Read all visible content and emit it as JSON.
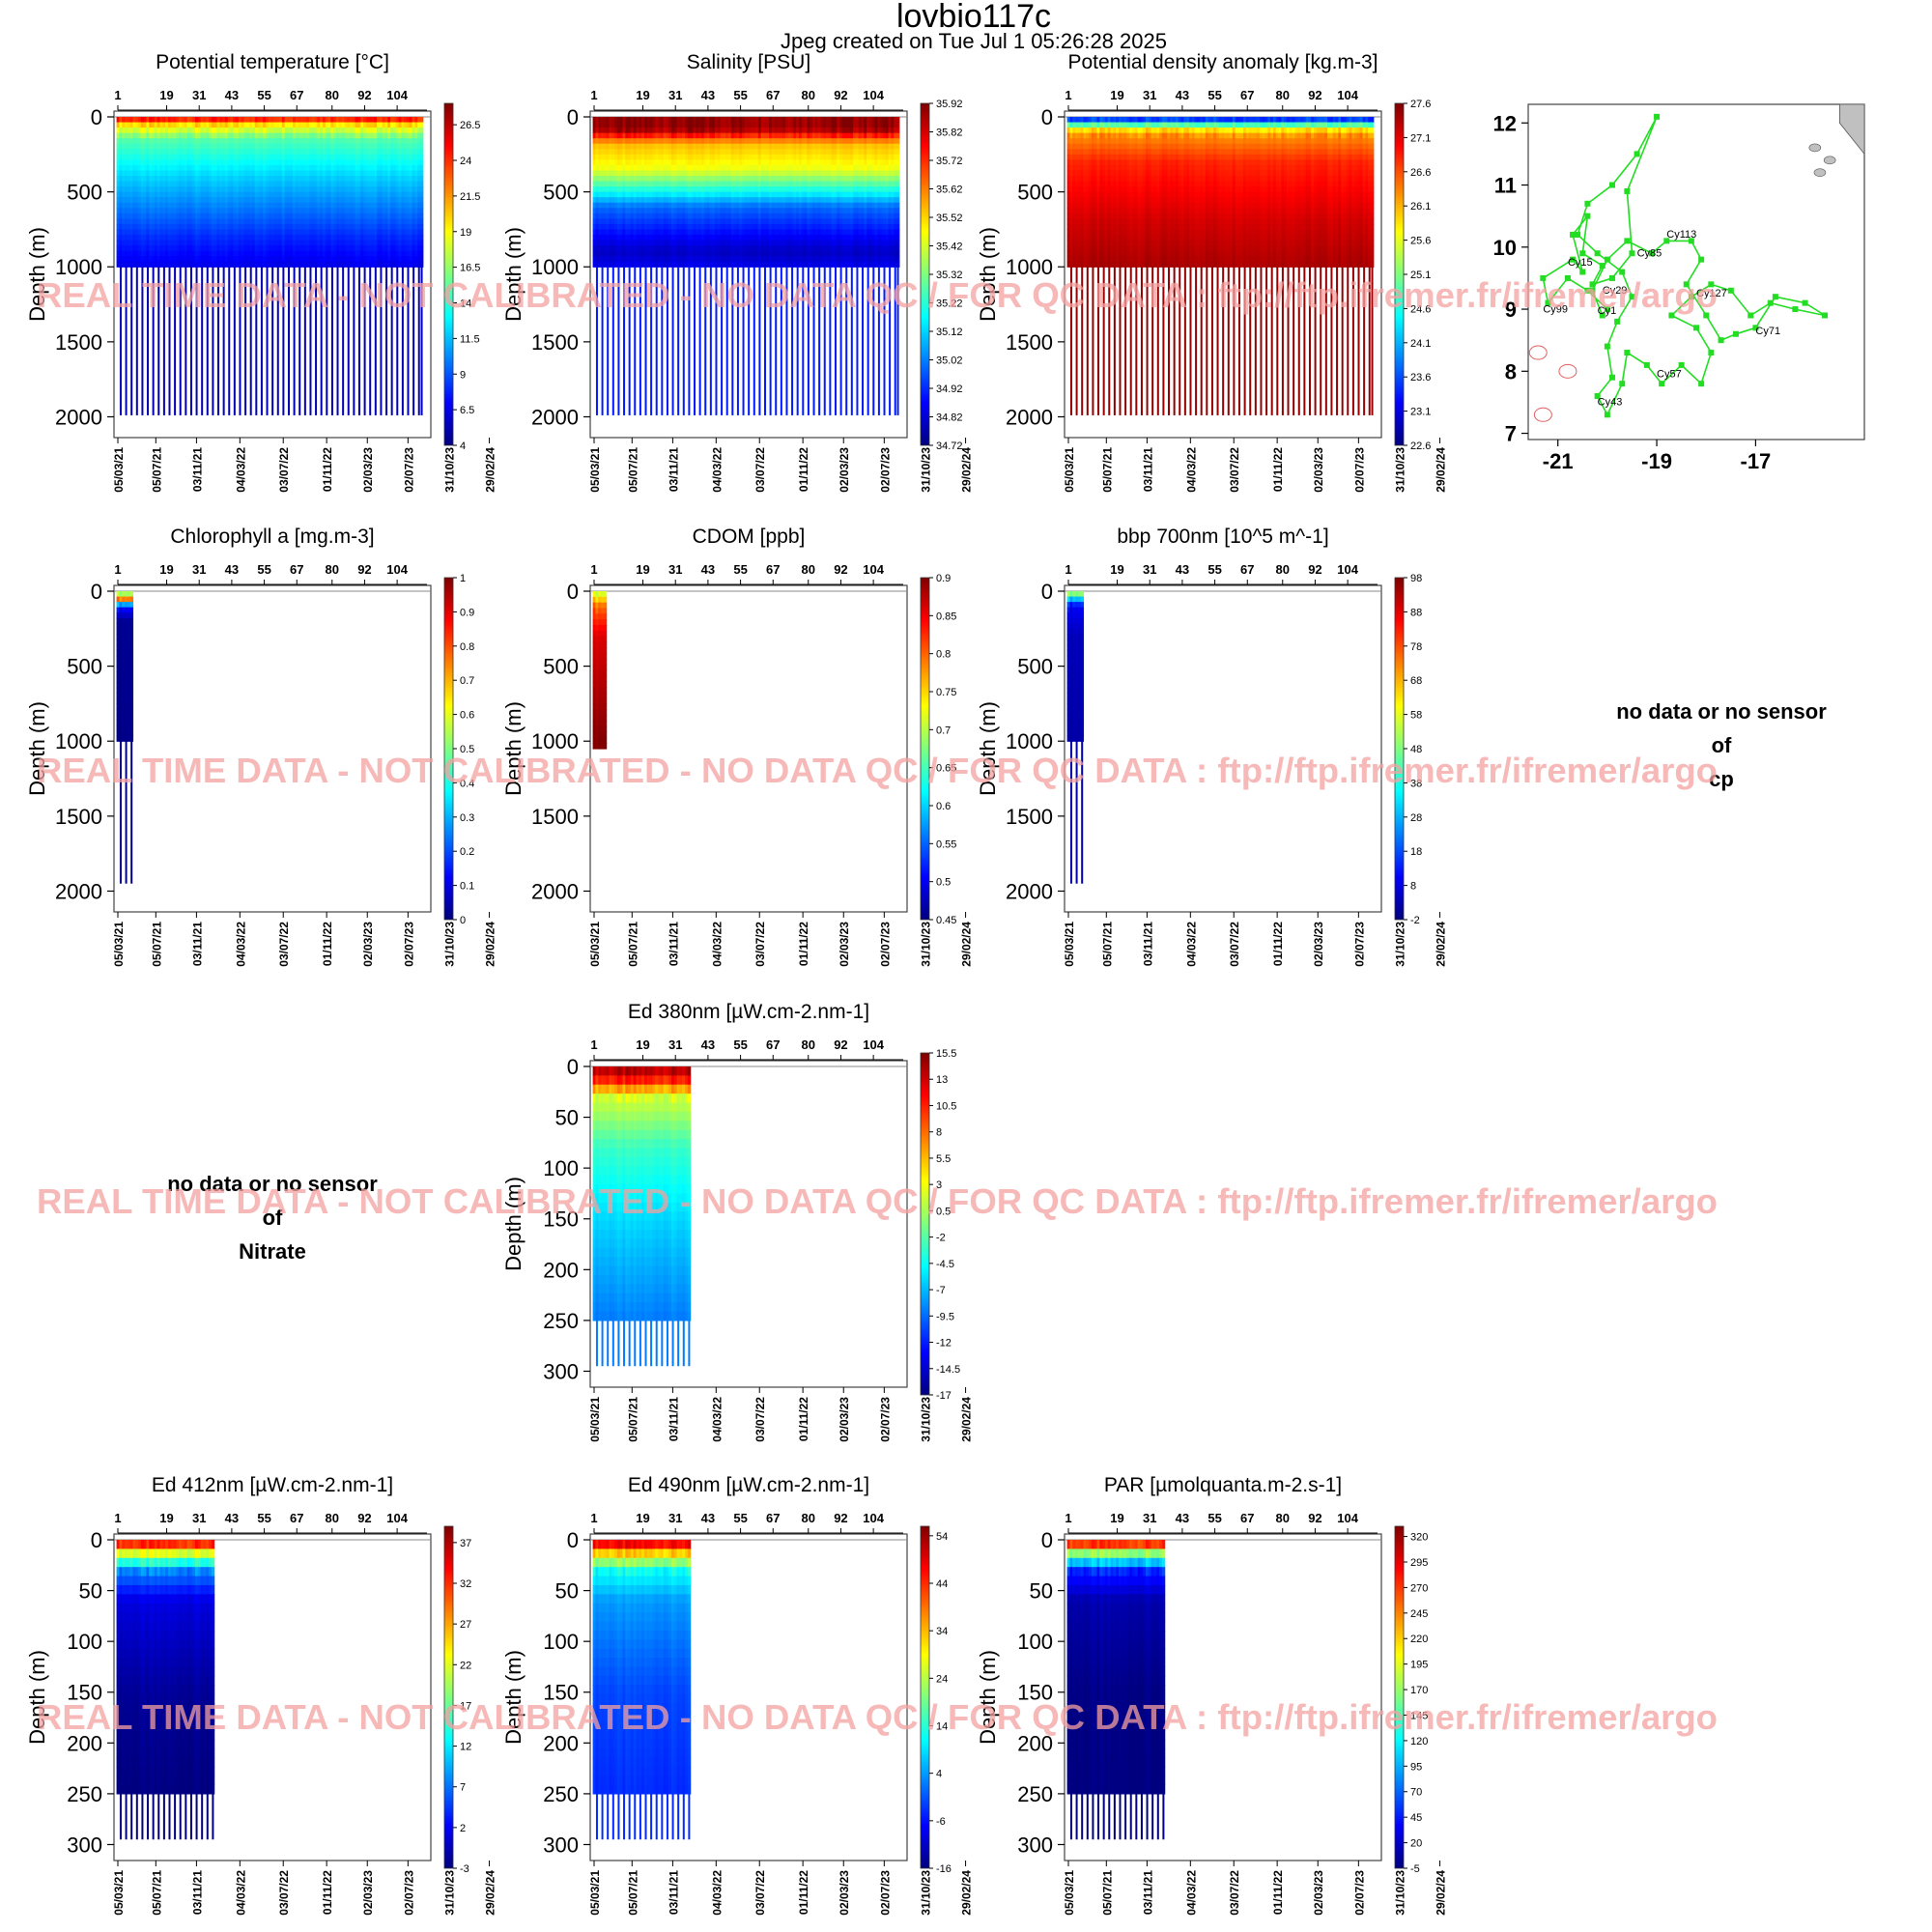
{
  "page": {
    "title": "lovbio117c",
    "subtitle": "Jpeg created on  Tue Jul  1 05:26:28 2025",
    "watermark": "REAL TIME DATA - NOT CALIBRATED - NO DATA QC  /  FOR QC DATA : ftp://ftp.ifremer.fr/ifremer/argo",
    "ylabel": "Depth (m)"
  },
  "axes": {
    "cycle_ticks": [
      "1",
      "19",
      "31",
      "43",
      "55",
      "67",
      "80",
      "92",
      "104"
    ],
    "date_ticks": [
      "05/03/21",
      "05/07/21",
      "03/11/21",
      "04/03/22",
      "03/07/22",
      "01/11/22",
      "02/03/23",
      "02/07/23",
      "31/10/23",
      "29/02/24"
    ],
    "deep_depth_ticks": [
      "0",
      "500",
      "1000",
      "1500",
      "2000"
    ],
    "shallow_depth_ticks": [
      "0",
      "50",
      "100",
      "150",
      "200",
      "250",
      "300"
    ]
  },
  "colors": {
    "jet": [
      "#00007f",
      "#0000ff",
      "#007fff",
      "#00ffff",
      "#7fff7f",
      "#ffff00",
      "#ff7f00",
      "#ff0000",
      "#7f0000"
    ],
    "track": "#22dd22",
    "land": "#c0c0c0",
    "contour": "#e06060",
    "watermark": "#f4a0a0"
  },
  "nodata_panels": [
    {
      "id": "cp",
      "line1": "no data or no sensor",
      "line2": "of",
      "line3": "cp"
    },
    {
      "id": "nitrate",
      "line1": "no data or no sensor",
      "line2": "of",
      "line3": "Nitrate"
    }
  ],
  "chart_data": [
    {
      "id": "temperature",
      "type": "heatmap",
      "title": "Potential temperature [°C]",
      "ylabel": "Depth (m)",
      "ylim": [
        0,
        2100
      ],
      "xlim_cycles": [
        1,
        115
      ],
      "colorbar": {
        "min": 4,
        "max": 28,
        "labels": [
          "26.5",
          "24",
          "21.5",
          "19",
          "16.5",
          "14",
          "11.5",
          "9",
          "6.5",
          "4"
        ]
      },
      "cycles_covered": [
        1,
        113
      ],
      "deep_max_depth": 1990,
      "shallow_max_depth": 1000,
      "profile": [
        [
          0,
          26.5
        ],
        [
          50,
          20
        ],
        [
          150,
          15
        ],
        [
          400,
          12
        ],
        [
          800,
          8
        ],
        [
          1000,
          6.5
        ],
        [
          2000,
          4
        ]
      ]
    },
    {
      "id": "salinity",
      "type": "heatmap",
      "title": "Salinity [PSU]",
      "ylabel": "Depth (m)",
      "ylim": [
        0,
        2100
      ],
      "xlim_cycles": [
        1,
        115
      ],
      "colorbar": {
        "min": 34.72,
        "max": 35.92,
        "labels": [
          "35.92",
          "35.82",
          "35.72",
          "35.62",
          "35.52",
          "35.42",
          "35.32",
          "35.22",
          "35.12",
          "35.02",
          "34.92",
          "34.82",
          "34.72"
        ]
      },
      "cycles_covered": [
        1,
        113
      ],
      "deep_max_depth": 1990,
      "shallow_max_depth": 1000,
      "profile": [
        [
          0,
          35.9
        ],
        [
          80,
          35.9
        ],
        [
          180,
          35.55
        ],
        [
          350,
          35.45
        ],
        [
          600,
          35.0
        ],
        [
          900,
          34.8
        ],
        [
          1000,
          34.85
        ],
        [
          2000,
          34.95
        ]
      ]
    },
    {
      "id": "density",
      "type": "heatmap",
      "title": "Potential density anomaly [kg.m-3]",
      "ylabel": "Depth (m)",
      "ylim": [
        0,
        2100
      ],
      "xlim_cycles": [
        1,
        115
      ],
      "colorbar": {
        "min": 22.6,
        "max": 27.6,
        "labels": [
          "27.6",
          "27.1",
          "26.6",
          "26.1",
          "25.6",
          "25.1",
          "24.6",
          "24.1",
          "23.6",
          "23.1",
          "22.6"
        ]
      },
      "cycles_covered": [
        1,
        113
      ],
      "deep_max_depth": 1990,
      "shallow_max_depth": 1000,
      "profile": [
        [
          0,
          22.8
        ],
        [
          40,
          24.5
        ],
        [
          100,
          26.2
        ],
        [
          300,
          26.8
        ],
        [
          700,
          27.2
        ],
        [
          1000,
          27.4
        ],
        [
          2000,
          27.6
        ]
      ]
    },
    {
      "id": "chlorophyll",
      "type": "heatmap",
      "title": "Chlorophyll a [mg.m-3]",
      "ylabel": "Depth (m)",
      "ylim": [
        0,
        2100
      ],
      "xlim_cycles": [
        1,
        115
      ],
      "colorbar": {
        "min": 0,
        "max": 1,
        "labels": [
          "1",
          "0.9",
          "0.8",
          "0.7",
          "0.6",
          "0.5",
          "0.4",
          "0.3",
          "0.2",
          "0.1",
          "0"
        ]
      },
      "cycles_covered": [
        1,
        6
      ],
      "deep_max_depth": 1950,
      "shallow_max_depth": 1000,
      "profile": [
        [
          0,
          0.4
        ],
        [
          50,
          0.8
        ],
        [
          100,
          0.15
        ],
        [
          200,
          0.02
        ],
        [
          1000,
          0.01
        ],
        [
          2000,
          0.0
        ]
      ]
    },
    {
      "id": "cdom",
      "type": "heatmap",
      "title": "CDOM  [ppb]",
      "ylabel": "Depth (m)",
      "ylim": [
        0,
        2100
      ],
      "xlim_cycles": [
        1,
        115
      ],
      "colorbar": {
        "min": 0.45,
        "max": 0.9,
        "labels": [
          "0.9",
          "0.85",
          "0.8",
          "0.75",
          "0.7",
          "0.65",
          "0.6",
          "0.55",
          "0.5",
          "0.45"
        ]
      },
      "cycles_covered": [
        1,
        5
      ],
      "deep_max_depth": 1050,
      "shallow_max_depth": 1050,
      "profile": [
        [
          0,
          0.7
        ],
        [
          100,
          0.8
        ],
        [
          300,
          0.86
        ],
        [
          1000,
          0.9
        ]
      ]
    },
    {
      "id": "bbp700",
      "type": "heatmap",
      "title": "bbp 700nm [10^5 m^-1]",
      "ylabel": "Depth (m)",
      "ylim": [
        0,
        2100
      ],
      "xlim_cycles": [
        1,
        115
      ],
      "colorbar": {
        "min": -2,
        "max": 98,
        "labels": [
          "98",
          "88",
          "78",
          "68",
          "58",
          "48",
          "38",
          "28",
          "18",
          "8",
          "-2"
        ]
      },
      "cycles_covered": [
        1,
        6
      ],
      "deep_max_depth": 1950,
      "shallow_max_depth": 1000,
      "profile": [
        [
          0,
          60
        ],
        [
          40,
          35
        ],
        [
          100,
          10
        ],
        [
          300,
          4
        ],
        [
          1000,
          2
        ],
        [
          2000,
          2
        ]
      ]
    },
    {
      "id": "ed380",
      "type": "heatmap",
      "title": "Ed 380nm [µW.cm-2.nm-1]",
      "ylabel": "Depth (m)",
      "ylim": [
        0,
        310
      ],
      "xlim_cycles": [
        1,
        115
      ],
      "colorbar": {
        "min": -17,
        "max": 15.5,
        "labels": [
          "15.5",
          "13",
          "10.5",
          "8",
          "5.5",
          "3",
          "0.5",
          "-2",
          "-4.5",
          "-7",
          "-9.5",
          "-12",
          "-14.5",
          "-17"
        ]
      },
      "cycles_covered": [
        1,
        36
      ],
      "deep_max_depth": 295,
      "shallow_max_depth": 250,
      "profile": [
        [
          0,
          15
        ],
        [
          15,
          10
        ],
        [
          30,
          2
        ],
        [
          80,
          -3
        ],
        [
          150,
          -6
        ],
        [
          250,
          -9
        ]
      ]
    },
    {
      "id": "ed412",
      "type": "heatmap",
      "title": "Ed 412nm [µW.cm-2.nm-1]",
      "ylabel": "Depth (m)",
      "ylim": [
        0,
        310
      ],
      "xlim_cycles": [
        1,
        115
      ],
      "colorbar": {
        "min": -3,
        "max": 39,
        "labels": [
          "37",
          "32",
          "27",
          "22",
          "17",
          "12",
          "7",
          "2",
          "-3"
        ]
      },
      "cycles_covered": [
        1,
        36
      ],
      "deep_max_depth": 295,
      "shallow_max_depth": 250,
      "profile": [
        [
          0,
          37
        ],
        [
          15,
          20
        ],
        [
          30,
          8
        ],
        [
          60,
          1
        ],
        [
          150,
          -2
        ],
        [
          250,
          -3
        ]
      ]
    },
    {
      "id": "ed490",
      "type": "heatmap",
      "title": "Ed 490nm [µW.cm-2.nm-1]",
      "ylabel": "Depth (m)",
      "ylim": [
        0,
        310
      ],
      "xlim_cycles": [
        1,
        115
      ],
      "colorbar": {
        "min": -16,
        "max": 56,
        "labels": [
          "54",
          "44",
          "34",
          "24",
          "14",
          "4",
          "-6",
          "-16"
        ]
      },
      "cycles_covered": [
        1,
        36
      ],
      "deep_max_depth": 295,
      "shallow_max_depth": 250,
      "profile": [
        [
          0,
          54
        ],
        [
          15,
          30
        ],
        [
          30,
          12
        ],
        [
          60,
          4
        ],
        [
          150,
          -2
        ],
        [
          250,
          -4
        ]
      ]
    },
    {
      "id": "par",
      "type": "heatmap",
      "title": "PAR [µmolquanta.m-2.s-1]",
      "ylabel": "Depth (m)",
      "ylim": [
        0,
        310
      ],
      "xlim_cycles": [
        1,
        115
      ],
      "colorbar": {
        "min": -5,
        "max": 330,
        "labels": [
          "320",
          "295",
          "270",
          "245",
          "220",
          "195",
          "170",
          "145",
          "120",
          "95",
          "70",
          "45",
          "20",
          "-5"
        ]
      },
      "cycles_covered": [
        1,
        36
      ],
      "deep_max_depth": 295,
      "shallow_max_depth": 250,
      "profile": [
        [
          0,
          320
        ],
        [
          15,
          150
        ],
        [
          30,
          50
        ],
        [
          60,
          10
        ],
        [
          150,
          -3
        ],
        [
          250,
          -5
        ]
      ]
    },
    {
      "id": "trajectory",
      "type": "scatter",
      "x_ticks": [
        "-21",
        "-19",
        "-17"
      ],
      "y_ticks": [
        "12",
        "11",
        "10",
        "9",
        "8",
        "7"
      ],
      "xlim": [
        -21.6,
        -14.8
      ],
      "ylim": [
        6.9,
        12.3
      ],
      "cycle_labels": [
        {
          "text": "Cy113",
          "lon": -18.8,
          "lat": 10.15
        },
        {
          "text": "Cy85",
          "lon": -19.4,
          "lat": 9.85
        },
        {
          "text": "Cy15",
          "lon": -20.8,
          "lat": 9.7
        },
        {
          "text": "Cy29",
          "lon": -20.1,
          "lat": 9.25
        },
        {
          "text": "Cy127",
          "lon": -18.2,
          "lat": 9.2
        },
        {
          "text": "Cy99",
          "lon": -21.3,
          "lat": 8.95
        },
        {
          "text": "Cy1",
          "lon": -20.2,
          "lat": 8.92
        },
        {
          "text": "Cy71",
          "lon": -17.0,
          "lat": 8.6
        },
        {
          "text": "Cy57",
          "lon": -19.0,
          "lat": 7.9
        },
        {
          "text": "Cy43",
          "lon": -20.2,
          "lat": 7.45
        }
      ],
      "track": [
        [
          -20.0,
          9.0
        ],
        [
          -20.4,
          9.3
        ],
        [
          -20.8,
          9.5
        ],
        [
          -21.2,
          9.1
        ],
        [
          -21.3,
          9.5
        ],
        [
          -20.7,
          9.8
        ],
        [
          -20.5,
          9.6
        ],
        [
          -20.7,
          10.2
        ],
        [
          -20.4,
          10.5
        ],
        [
          -20.5,
          9.9
        ],
        [
          -20.1,
          9.7
        ],
        [
          -20.3,
          9.4
        ],
        [
          -19.9,
          9.5
        ],
        [
          -19.5,
          9.9
        ],
        [
          -19.6,
          10.9
        ],
        [
          -19.0,
          12.1
        ],
        [
          -19.4,
          11.5
        ],
        [
          -19.9,
          11.0
        ],
        [
          -20.4,
          10.7
        ],
        [
          -20.6,
          10.2
        ],
        [
          -20.2,
          9.9
        ],
        [
          -19.7,
          9.6
        ],
        [
          -19.5,
          9.2
        ],
        [
          -19.8,
          8.8
        ],
        [
          -20.0,
          8.4
        ],
        [
          -19.9,
          7.9
        ],
        [
          -20.2,
          7.6
        ],
        [
          -20.0,
          7.3
        ],
        [
          -19.7,
          7.8
        ],
        [
          -19.6,
          8.3
        ],
        [
          -19.2,
          8.1
        ],
        [
          -18.9,
          7.8
        ],
        [
          -18.5,
          8.1
        ],
        [
          -18.1,
          7.8
        ],
        [
          -17.9,
          8.3
        ],
        [
          -18.2,
          8.7
        ],
        [
          -18.7,
          8.9
        ],
        [
          -18.3,
          9.2
        ],
        [
          -17.9,
          9.4
        ],
        [
          -17.5,
          9.3
        ],
        [
          -17.1,
          8.9
        ],
        [
          -16.7,
          9.1
        ],
        [
          -16.2,
          9.0
        ],
        [
          -15.6,
          8.9
        ],
        [
          -16.0,
          9.1
        ],
        [
          -16.6,
          9.2
        ],
        [
          -17.0,
          8.7
        ],
        [
          -17.4,
          8.6
        ],
        [
          -17.7,
          8.5
        ],
        [
          -18.0,
          8.9
        ],
        [
          -18.4,
          9.4
        ],
        [
          -18.1,
          9.8
        ],
        [
          -18.3,
          10.1
        ],
        [
          -18.8,
          10.1
        ],
        [
          -19.1,
          9.9
        ],
        [
          -19.6,
          10.1
        ],
        [
          -20.0,
          9.8
        ],
        [
          -20.3,
          9.3
        ],
        [
          -20.1,
          8.9
        ]
      ],
      "land": [
        [
          -15.3,
          12.3
        ],
        [
          -14.8,
          12.3
        ],
        [
          -14.8,
          11.5
        ],
        [
          -15.1,
          11.8
        ],
        [
          -15.3,
          12.0
        ]
      ],
      "islands": [
        [
          -15.8,
          11.6
        ],
        [
          -15.5,
          11.4
        ],
        [
          -15.7,
          11.2
        ]
      ],
      "contours": [
        [
          -21.4,
          8.3
        ],
        [
          -20.8,
          8.0
        ],
        [
          -21.3,
          7.3
        ]
      ]
    }
  ]
}
